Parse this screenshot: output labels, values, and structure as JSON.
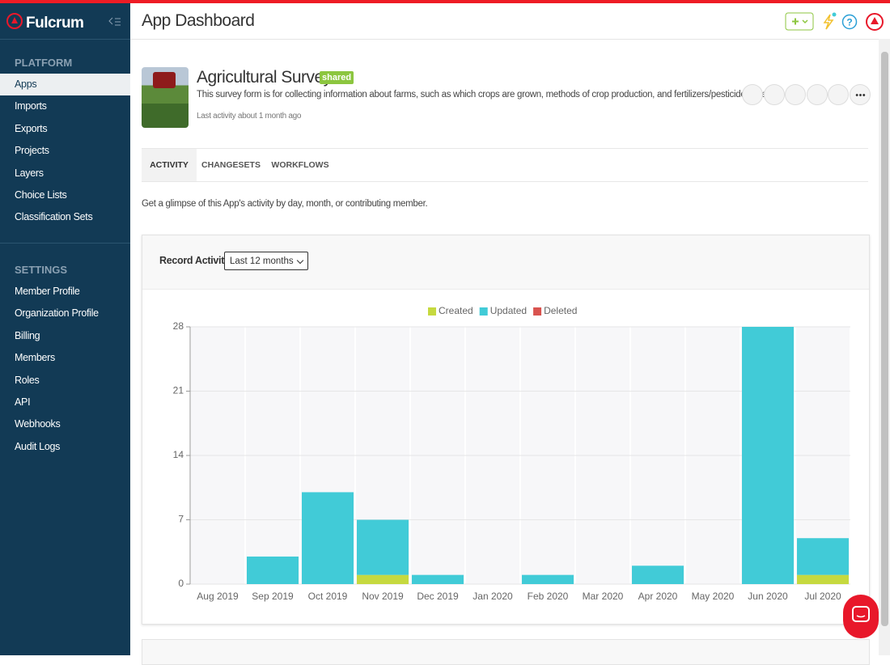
{
  "brand": "Fulcrum",
  "sidebar": {
    "sections": [
      {
        "title": "PLATFORM",
        "items": [
          "Apps",
          "Imports",
          "Exports",
          "Projects",
          "Layers",
          "Choice Lists",
          "Classification Sets"
        ]
      },
      {
        "title": "SETTINGS",
        "items": [
          "Member Profile",
          "Organization Profile",
          "Billing",
          "Members",
          "Roles",
          "API",
          "Webhooks",
          "Audit Logs"
        ]
      }
    ]
  },
  "header": {
    "title": "App Dashboard"
  },
  "app": {
    "name": "Agricultural Survey",
    "badge": "shared",
    "description": "This survey form is for collecting information about farms, such as which crops are grown, methods of crop production, and fertilizers/pesticides used.",
    "last_activity": "Last activity about 1 month ago"
  },
  "tabs": [
    "ACTIVITY",
    "CHANGESETS",
    "WORKFLOWS"
  ],
  "intro": "Get a glimpse of this App's activity by day, month, or contributing member.",
  "card": {
    "title": "Record Activity",
    "range": "Last 12 months"
  },
  "chart_data": {
    "type": "stacked_bar",
    "categories": [
      "Aug 2019",
      "Sep 2019",
      "Oct 2019",
      "Nov 2019",
      "Dec 2019",
      "Jan 2020",
      "Feb 2020",
      "Mar 2020",
      "Apr 2020",
      "May 2020",
      "Jun 2020",
      "Jul 2020"
    ],
    "series": [
      {
        "name": "Created",
        "color": "#c6d93f",
        "values": [
          0,
          0,
          0,
          1,
          0,
          0,
          0,
          0,
          0,
          0,
          0,
          1
        ]
      },
      {
        "name": "Updated",
        "color": "#41cbd7",
        "values": [
          0,
          3,
          10,
          6,
          1,
          0,
          1,
          0,
          2,
          0,
          28,
          4
        ]
      },
      {
        "name": "Deleted",
        "color": "#d9534f",
        "values": [
          0,
          0,
          0,
          0,
          0,
          0,
          0,
          0,
          0,
          0,
          0,
          0
        ]
      }
    ],
    "ylim": [
      0,
      28
    ],
    "yticks": [
      0,
      7,
      14,
      21,
      28
    ],
    "grid": true
  }
}
